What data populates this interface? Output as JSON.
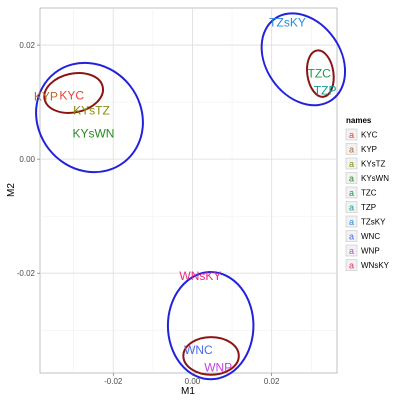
{
  "chart_data": {
    "type": "scatter",
    "xlabel": "M1",
    "ylabel": "M2",
    "xlim": [
      -0.0385,
      0.0365
    ],
    "ylim": [
      -0.0375,
      0.0265
    ],
    "xticks": [
      -0.02,
      0.0,
      0.02
    ],
    "xtick_labels": [
      "-0.02",
      "0.00",
      "0.02"
    ],
    "yticks": [
      -0.02,
      0.0,
      0.02
    ],
    "ytick_labels": [
      "-0.02",
      "0.00",
      "0.02"
    ],
    "grid": true,
    "legend_title": "names",
    "legend_position": "right",
    "points": [
      {
        "label": "KYC",
        "x": -0.0305,
        "y": 0.0112,
        "color": "#e8403a"
      },
      {
        "label": "KYP",
        "x": -0.037,
        "y": 0.011,
        "color": "#b86a2a"
      },
      {
        "label": "KYsTZ",
        "x": -0.0255,
        "y": 0.0085,
        "color": "#8a8a10"
      },
      {
        "label": "KYsWN",
        "x": -0.025,
        "y": 0.0045,
        "color": "#2a8a20"
      },
      {
        "label": "TZC",
        "x": 0.032,
        "y": 0.015,
        "color": "#1a9a50"
      },
      {
        "label": "TZP",
        "x": 0.0335,
        "y": 0.012,
        "color": "#10a090"
      },
      {
        "label": "TZsKY",
        "x": 0.024,
        "y": 0.024,
        "color": "#2a8ad8"
      },
      {
        "label": "WNC",
        "x": 0.0015,
        "y": -0.0335,
        "color": "#4a6ae8"
      },
      {
        "label": "WNP",
        "x": 0.0065,
        "y": -0.0365,
        "color": "#c840e0"
      },
      {
        "label": "WNsKY",
        "x": 0.002,
        "y": -0.0205,
        "color": "#e82a80"
      }
    ],
    "ellipses": [
      {
        "cx": -0.026,
        "cy": 0.0073,
        "rx": 0.013,
        "ry": 0.0099,
        "angle": 38,
        "color": "#2222dd"
      },
      {
        "cx": -0.03,
        "cy": 0.0116,
        "rx": 0.0075,
        "ry": 0.0034,
        "angle": 12,
        "color": "#8b1515"
      },
      {
        "cx": 0.028,
        "cy": 0.0175,
        "rx": 0.0094,
        "ry": 0.0087,
        "angle": 35,
        "color": "#2222dd"
      },
      {
        "cx": 0.0323,
        "cy": 0.015,
        "rx": 0.0033,
        "ry": 0.0041,
        "angle": 8,
        "color": "#8b1515"
      },
      {
        "cx": 0.0046,
        "cy": -0.0292,
        "rx": 0.0108,
        "ry": 0.0094,
        "angle": 0,
        "color": "#2222dd"
      },
      {
        "cx": 0.0047,
        "cy": -0.0345,
        "rx": 0.007,
        "ry": 0.0033,
        "angle": 0,
        "color": "#8b1515"
      }
    ]
  }
}
